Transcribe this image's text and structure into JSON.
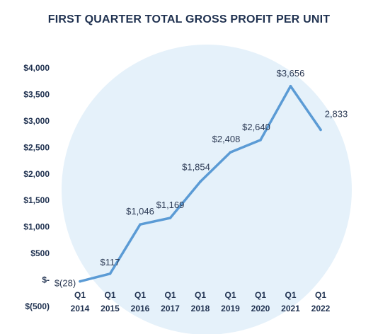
{
  "chart_data": {
    "type": "line",
    "title": "FIRST QUARTER TOTAL GROSS PROFIT PER UNIT",
    "xlabel": "",
    "ylabel": "",
    "categories": [
      [
        "Q1",
        "2014"
      ],
      [
        "Q1",
        "2015"
      ],
      [
        "Q1",
        "2016"
      ],
      [
        "Q1",
        "2017"
      ],
      [
        "Q1",
        "2018"
      ],
      [
        "Q1",
        "2019"
      ],
      [
        "Q1",
        "2020"
      ],
      [
        "Q1",
        "2021"
      ],
      [
        "Q1",
        "2022"
      ]
    ],
    "values": [
      -28,
      117,
      1046,
      1169,
      1854,
      2408,
      2640,
      3656,
      2833
    ],
    "data_labels": [
      "$(28)",
      "$117",
      "$1,046",
      "$1,169",
      "$1,854",
      "$2,408",
      "$2,640",
      "$3,656",
      "2,833"
    ],
    "y_ticks": [
      {
        "value": 4000,
        "label": "$4,000"
      },
      {
        "value": 3500,
        "label": "$3,500"
      },
      {
        "value": 3000,
        "label": "$3,000"
      },
      {
        "value": 2500,
        "label": "$2,500"
      },
      {
        "value": 2000,
        "label": "$2,000"
      },
      {
        "value": 1500,
        "label": "$1,500"
      },
      {
        "value": 1000,
        "label": "$1,000"
      },
      {
        "value": 500,
        "label": "$500"
      },
      {
        "value": 0,
        "label": "$-"
      },
      {
        "value": -500,
        "label": "$(500)"
      }
    ],
    "ylim": [
      -500,
      4000
    ],
    "grid": false,
    "colors": {
      "line": "#5b9bd5",
      "background_circle": "#e5f1fa",
      "axis_text": "#1f3150",
      "label_text": "#2d3b55"
    }
  }
}
